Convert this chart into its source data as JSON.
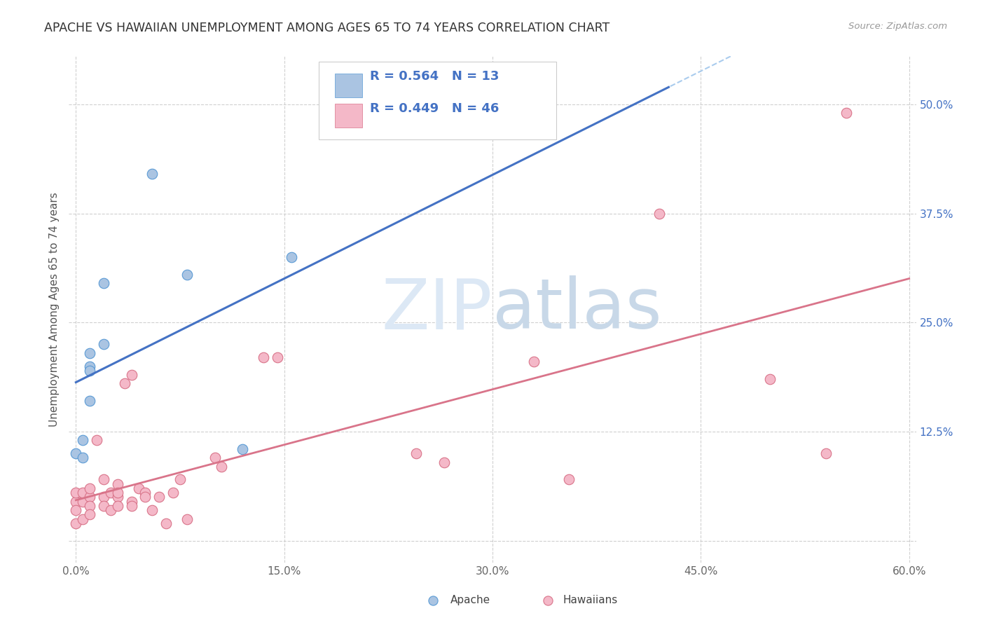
{
  "title": "APACHE VS HAWAIIAN UNEMPLOYMENT AMONG AGES 65 TO 74 YEARS CORRELATION CHART",
  "source": "Source: ZipAtlas.com",
  "ylabel": "Unemployment Among Ages 65 to 74 years",
  "xlim": [
    -0.005,
    0.605
  ],
  "ylim": [
    -0.025,
    0.555
  ],
  "xticks": [
    0.0,
    0.15,
    0.3,
    0.45,
    0.6
  ],
  "xtick_labels": [
    "0.0%",
    "15.0%",
    "30.0%",
    "45.0%",
    "60.0%"
  ],
  "yticks": [
    0.0,
    0.125,
    0.25,
    0.375,
    0.5
  ],
  "ytick_labels": [
    "",
    "12.5%",
    "25.0%",
    "37.5%",
    "50.0%"
  ],
  "apache_color": "#aac4e2",
  "apache_edge_color": "#5b9bd5",
  "hawaiian_color": "#f4b8c8",
  "hawaiian_edge_color": "#d9748a",
  "apache_line_color": "#4472c4",
  "hawaiian_line_color": "#d9748a",
  "apache_R": 0.564,
  "apache_N": 13,
  "hawaiian_R": 0.449,
  "hawaiian_N": 46,
  "text_color": "#4472c4",
  "watermark_text": "ZIPatlas",
  "apache_points": [
    [
      0.0,
      0.1
    ],
    [
      0.005,
      0.095
    ],
    [
      0.005,
      0.115
    ],
    [
      0.01,
      0.2
    ],
    [
      0.01,
      0.215
    ],
    [
      0.01,
      0.195
    ],
    [
      0.01,
      0.16
    ],
    [
      0.02,
      0.295
    ],
    [
      0.02,
      0.225
    ],
    [
      0.055,
      0.42
    ],
    [
      0.08,
      0.305
    ],
    [
      0.12,
      0.105
    ],
    [
      0.155,
      0.325
    ]
  ],
  "hawaiian_points": [
    [
      0.0,
      0.045
    ],
    [
      0.0,
      0.055
    ],
    [
      0.0,
      0.035
    ],
    [
      0.0,
      0.02
    ],
    [
      0.005,
      0.045
    ],
    [
      0.005,
      0.055
    ],
    [
      0.005,
      0.025
    ],
    [
      0.01,
      0.05
    ],
    [
      0.01,
      0.04
    ],
    [
      0.01,
      0.06
    ],
    [
      0.01,
      0.03
    ],
    [
      0.015,
      0.115
    ],
    [
      0.02,
      0.07
    ],
    [
      0.02,
      0.05
    ],
    [
      0.02,
      0.04
    ],
    [
      0.025,
      0.055
    ],
    [
      0.025,
      0.035
    ],
    [
      0.03,
      0.065
    ],
    [
      0.03,
      0.05
    ],
    [
      0.03,
      0.055
    ],
    [
      0.03,
      0.04
    ],
    [
      0.035,
      0.18
    ],
    [
      0.04,
      0.19
    ],
    [
      0.04,
      0.045
    ],
    [
      0.04,
      0.04
    ],
    [
      0.045,
      0.06
    ],
    [
      0.05,
      0.055
    ],
    [
      0.05,
      0.05
    ],
    [
      0.055,
      0.035
    ],
    [
      0.06,
      0.05
    ],
    [
      0.065,
      0.02
    ],
    [
      0.07,
      0.055
    ],
    [
      0.075,
      0.07
    ],
    [
      0.08,
      0.025
    ],
    [
      0.1,
      0.095
    ],
    [
      0.105,
      0.085
    ],
    [
      0.135,
      0.21
    ],
    [
      0.145,
      0.21
    ],
    [
      0.245,
      0.1
    ],
    [
      0.265,
      0.09
    ],
    [
      0.33,
      0.205
    ],
    [
      0.355,
      0.07
    ],
    [
      0.42,
      0.375
    ],
    [
      0.5,
      0.185
    ],
    [
      0.54,
      0.1
    ],
    [
      0.555,
      0.49
    ]
  ],
  "background_color": "#ffffff",
  "grid_color": "#d0d0d0",
  "marker_size": 110
}
